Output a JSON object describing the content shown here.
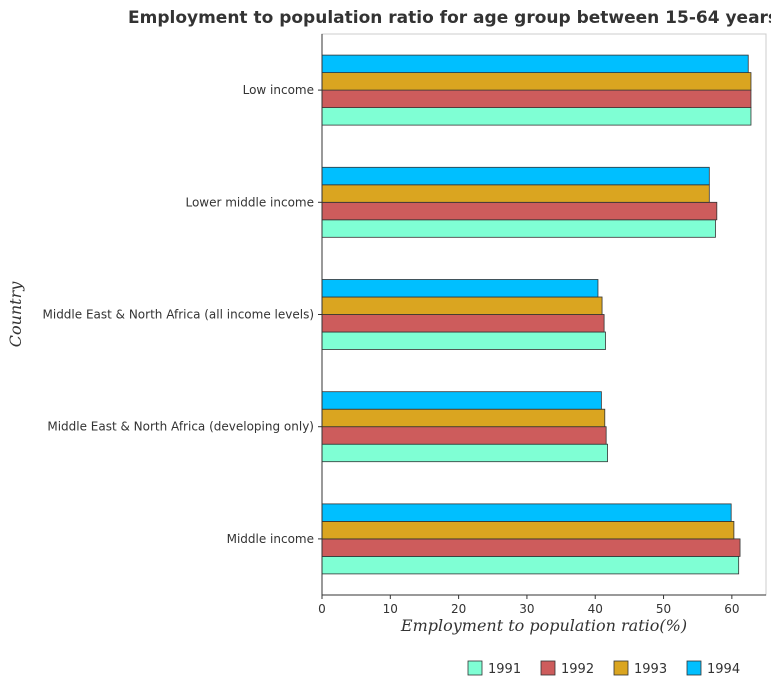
{
  "chart_data": {
    "type": "bar",
    "orientation": "horizontal",
    "title": "Employment to population ratio for age group between 15-64 years",
    "xlabel": "Employment to population ratio(%)",
    "ylabel": "Country",
    "xlim": [
      0,
      65
    ],
    "xticks": [
      0,
      10,
      20,
      30,
      40,
      50,
      60
    ],
    "categories": [
      "Low income",
      "Lower middle income",
      "Middle East & North Africa (all income levels)",
      "Middle East & North Africa (developing only)",
      "Middle income"
    ],
    "series": [
      {
        "name": "1991",
        "color": "#7fffd4",
        "values": [
          62.8,
          57.6,
          41.5,
          41.8,
          61.0
        ]
      },
      {
        "name": "1992",
        "color": "#cd5c5c",
        "values": [
          62.8,
          57.8,
          41.3,
          41.6,
          61.2
        ]
      },
      {
        "name": "1993",
        "color": "#daa520",
        "values": [
          62.8,
          56.7,
          41.0,
          41.4,
          60.3
        ]
      },
      {
        "name": "1994",
        "color": "#00bfff",
        "values": [
          62.4,
          56.7,
          40.4,
          40.9,
          59.9
        ]
      }
    ],
    "legend_position": "bottom-right",
    "grid": false
  }
}
